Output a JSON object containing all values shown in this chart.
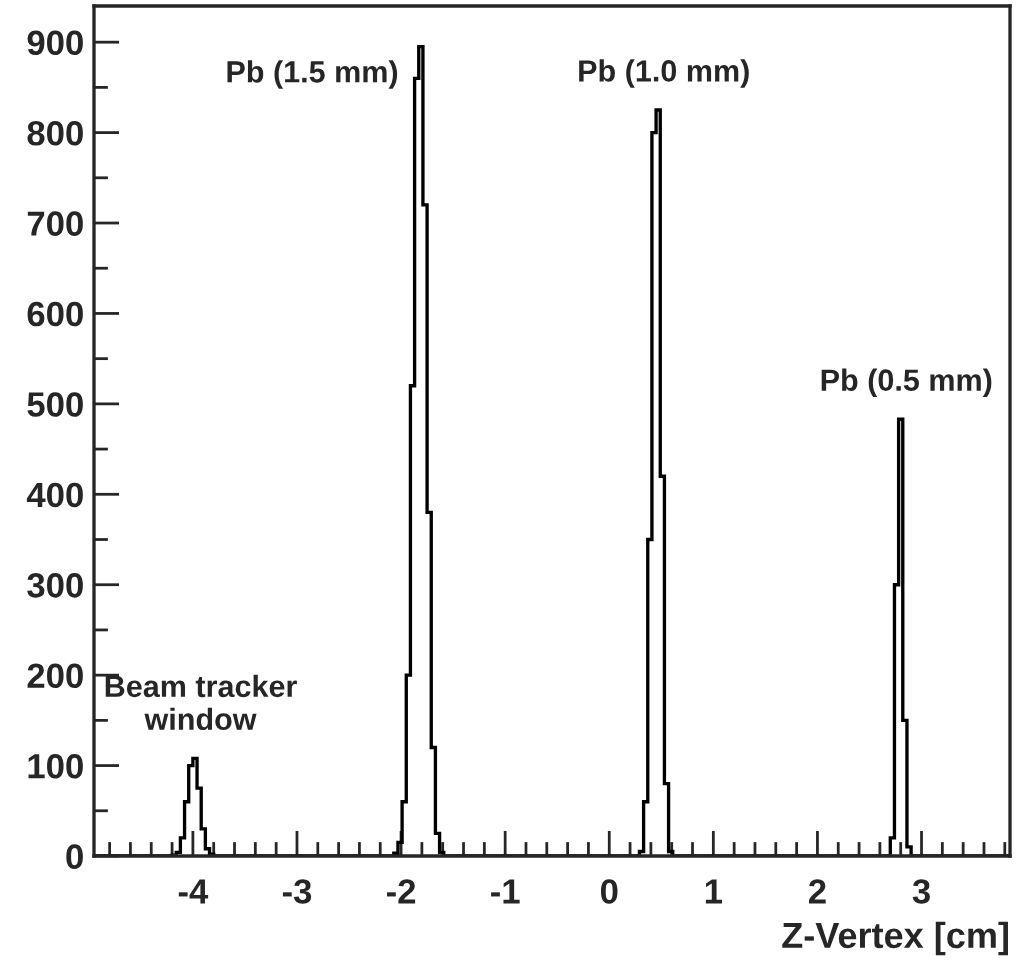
{
  "chart_data": {
    "type": "histogram",
    "xlabel": "Z-Vertex [cm]",
    "bins": [
      -4.95,
      -4.2,
      -4.16,
      -4.12,
      -4.08,
      -4.04,
      -4.0,
      -3.96,
      -3.92,
      -3.88,
      -3.84,
      -3.8,
      -2.07,
      -2.03,
      -1.99,
      -1.95,
      -1.91,
      -1.87,
      -1.83,
      -1.79,
      -1.75,
      -1.71,
      -1.67,
      -1.63,
      -1.59,
      0.29,
      0.33,
      0.37,
      0.41,
      0.45,
      0.49,
      0.53,
      0.57,
      0.61,
      2.7,
      2.74,
      2.78,
      2.82,
      2.86,
      2.9,
      3.85
    ],
    "values": [
      0,
      1,
      4,
      20,
      60,
      100,
      108,
      75,
      30,
      8,
      2,
      0,
      3,
      15,
      60,
      200,
      520,
      860,
      895,
      720,
      380,
      120,
      25,
      4,
      0,
      5,
      60,
      350,
      800,
      825,
      420,
      80,
      5,
      0,
      20,
      300,
      483,
      150,
      10,
      0
    ],
    "color": "#000000",
    "xlim": [
      -4.95,
      3.85
    ],
    "ylim": [
      0,
      940
    ],
    "xticks": [
      -4,
      -3,
      -2,
      -1,
      0,
      1,
      2,
      3,
      {
        "value": -4.8,
        "label": null
      },
      {
        "value": -4.6,
        "label": null
      },
      {
        "value": -4.4,
        "label": null
      },
      {
        "value": -4.2,
        "label": null
      },
      {
        "value": -3.8,
        "label": null
      },
      {
        "value": -3.6,
        "label": null
      },
      {
        "value": -3.4,
        "label": null
      },
      {
        "value": -3.2,
        "label": null
      },
      {
        "value": -2.8,
        "label": null
      },
      {
        "value": -2.6,
        "label": null
      },
      {
        "value": -2.4,
        "label": null
      },
      {
        "value": -2.2,
        "label": null
      },
      {
        "value": -1.8,
        "label": null
      },
      {
        "value": -1.6,
        "label": null
      },
      {
        "value": -1.4,
        "label": null
      },
      {
        "value": -1.2,
        "label": null
      },
      {
        "value": -0.8,
        "label": null
      },
      {
        "value": -0.6,
        "label": null
      },
      {
        "value": -0.4,
        "label": null
      },
      {
        "value": -0.2,
        "label": null
      },
      {
        "value": 0.2,
        "label": null
      },
      {
        "value": 0.4,
        "label": null
      },
      {
        "value": 0.6,
        "label": null
      },
      {
        "value": 0.8,
        "label": null
      },
      {
        "value": 1.2,
        "label": null
      },
      {
        "value": 1.4,
        "label": null
      },
      {
        "value": 1.6,
        "label": null
      },
      {
        "value": 1.8,
        "label": null
      },
      {
        "value": 2.2,
        "label": null
      },
      {
        "value": 2.4,
        "label": null
      },
      {
        "value": 2.6,
        "label": null
      },
      {
        "value": 2.8,
        "label": null
      },
      {
        "value": 3.2,
        "label": null
      },
      {
        "value": 3.4,
        "label": null
      },
      {
        "value": 3.6,
        "label": null
      },
      {
        "value": 3.8,
        "label": null
      }
    ],
    "yticks": [
      0,
      100,
      200,
      300,
      400,
      500,
      600,
      700,
      800,
      900,
      {
        "value": 50,
        "label": null
      },
      {
        "value": 150,
        "label": null
      },
      {
        "value": 250,
        "label": null
      },
      {
        "value": 350,
        "label": null
      },
      {
        "value": 450,
        "label": null
      },
      {
        "value": 550,
        "label": null
      },
      {
        "value": 650,
        "label": null
      },
      {
        "value": 750,
        "label": null
      },
      {
        "value": 850,
        "label": null
      }
    ],
    "annotations": [
      {
        "text": "Beam tracker\nwindow",
        "x": -3.98,
        "y": 108
      },
      {
        "text": "Pb (1.5 mm)",
        "x": -1.81,
        "y": 895
      },
      {
        "text": "Pb (1.0 mm)",
        "x": 0.47,
        "y": 825
      },
      {
        "text": "Pb (0.5 mm)",
        "x": 2.8,
        "y": 483
      }
    ],
    "grid": false,
    "legend": false
  }
}
